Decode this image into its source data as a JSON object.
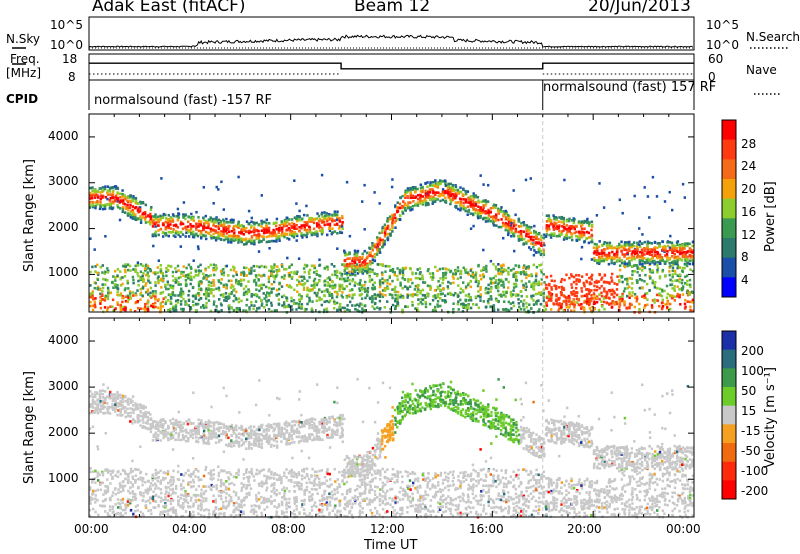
{
  "header": {
    "radar": "Adak East (fitACF)",
    "beam": "Beam 12",
    "date": "20/Jun/2013"
  },
  "noise_panel": {
    "left_label": "N.Sky",
    "right_label": "N.Search",
    "left_ticks": [
      "10^5",
      "10^0"
    ],
    "right_ticks": [
      "10^5",
      "10^0"
    ]
  },
  "freq_panel": {
    "left_label_1": "Freq.",
    "left_label_2": "[MHz]",
    "right_label": "Nave",
    "left_ticks": [
      "18",
      "8"
    ],
    "right_ticks": [
      "60",
      "0"
    ]
  },
  "cpid_panel": {
    "label": "CPID",
    "segments": [
      "normalsound (fast) -157 RF",
      "normalsound (fast) 157 RF"
    ]
  },
  "x_axis": {
    "label": "Time UT",
    "ticks": [
      "00:00",
      "04:00",
      "08:00",
      "12:00",
      "16:00",
      "20:00",
      "00:00"
    ]
  },
  "y_axis": {
    "label": "Slant Range [km]",
    "ticks": [
      "4000",
      "3000",
      "2000",
      "1000"
    ]
  },
  "power_colorbar": {
    "label": "Power [dB]",
    "ticks": [
      "28",
      "24",
      "20",
      "16",
      "12",
      "8",
      "4"
    ],
    "colors": [
      "#ff0000",
      "#ff3a10",
      "#f46a16",
      "#f5a20a",
      "#8ccc2c",
      "#3b9a52",
      "#2b7a6c",
      "#1a4ea8",
      "#0000ff"
    ]
  },
  "velocity_colorbar": {
    "label": "Velocity [m s⁻¹]",
    "ticks": [
      "200",
      "100",
      "50",
      "15",
      "-15",
      "-50",
      "-100",
      "-200"
    ],
    "colors": [
      "#1a2fa8",
      "#2a6e7e",
      "#3c9a4a",
      "#6ccc2a",
      "#c8c8c8",
      "#f5a020",
      "#f06a10",
      "#ff2a0a",
      "#ff0000"
    ]
  },
  "chart_data": {
    "type": "heatmap",
    "x_range_hours": [
      0,
      24
    ],
    "y_range_km": [
      180,
      4500
    ],
    "mode_change_hours": [
      10,
      18
    ],
    "frequency_MHz": {
      "segments": [
        [
          0,
          10,
          15.4
        ],
        [
          10,
          18,
          12.6
        ],
        [
          18,
          24,
          15.4
        ]
      ]
    },
    "power_scale_dB": [
      0,
      30
    ],
    "velocity_scale_ms": [
      -250,
      250
    ]
  }
}
